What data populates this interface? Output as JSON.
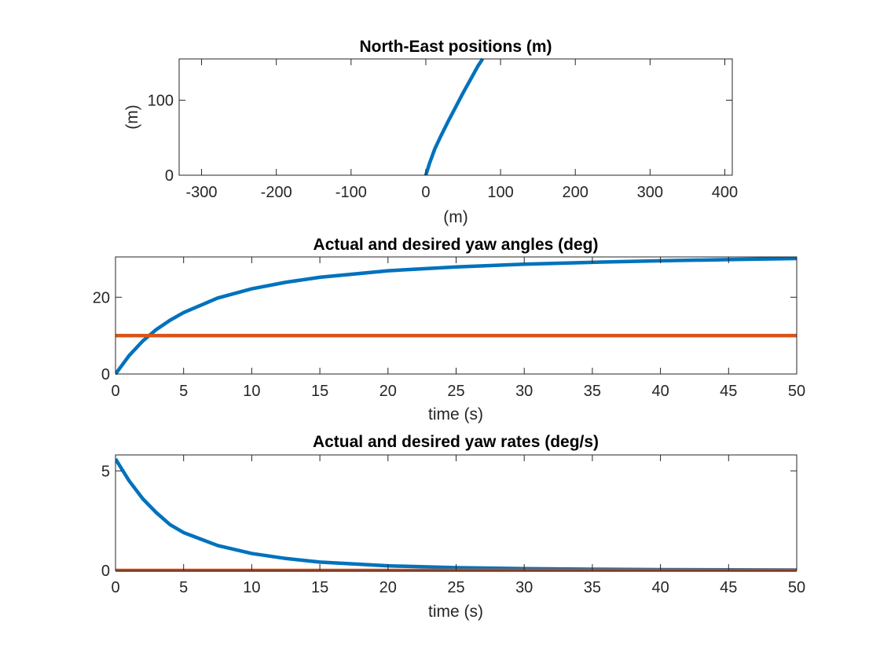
{
  "chart_data": [
    {
      "type": "line",
      "title": "North-East positions (m)",
      "xlabel": "(m)",
      "ylabel": "(m)",
      "xlim": [
        -330,
        410
      ],
      "ylim": [
        0,
        155
      ],
      "xticks": [
        -300,
        -200,
        -100,
        0,
        100,
        200,
        300,
        400
      ],
      "yticks": [
        0,
        100
      ],
      "grid": false,
      "series": [
        {
          "color": "#0072BD",
          "x": [
            0,
            5,
            12,
            20,
            30,
            40,
            50,
            60,
            70,
            76
          ],
          "y": [
            0,
            16,
            35,
            52,
            72,
            91,
            110,
            128,
            146,
            155
          ]
        }
      ]
    },
    {
      "type": "line",
      "title": "Actual and desired yaw angles (deg)",
      "xlabel": "time (s)",
      "ylabel": "",
      "xlim": [
        0,
        50
      ],
      "ylim": [
        0,
        30.5
      ],
      "xticks": [
        0,
        5,
        10,
        15,
        20,
        25,
        30,
        35,
        40,
        45,
        50
      ],
      "yticks": [
        0,
        20
      ],
      "grid": false,
      "series": [
        {
          "color": "#0072BD",
          "x": [
            0,
            1,
            2,
            3,
            4,
            5,
            7.5,
            10,
            12.5,
            15,
            20,
            25,
            30,
            35,
            40,
            45,
            50
          ],
          "y": [
            0,
            4.8,
            8.6,
            11.6,
            14,
            16,
            19.8,
            22.2,
            23.9,
            25.2,
            26.9,
            27.9,
            28.6,
            29.1,
            29.5,
            29.8,
            30.1
          ]
        },
        {
          "color": "#D95319",
          "x": [
            0,
            50
          ],
          "y": [
            10,
            10
          ]
        }
      ]
    },
    {
      "type": "line",
      "title": "Actual and desired yaw rates (deg/s)",
      "xlabel": "time (s)",
      "ylabel": "",
      "xlim": [
        0,
        50
      ],
      "ylim": [
        0,
        5.8
      ],
      "xticks": [
        0,
        5,
        10,
        15,
        20,
        25,
        30,
        35,
        40,
        45,
        50
      ],
      "yticks": [
        0,
        5
      ],
      "grid": false,
      "series": [
        {
          "color": "#0072BD",
          "x": [
            0,
            1,
            2,
            3,
            4,
            5,
            7.5,
            10,
            12.5,
            15,
            20,
            25,
            30,
            35,
            40,
            45,
            50
          ],
          "y": [
            5.6,
            4.5,
            3.6,
            2.9,
            2.3,
            1.9,
            1.25,
            0.85,
            0.6,
            0.42,
            0.23,
            0.14,
            0.09,
            0.06,
            0.04,
            0.03,
            0.02
          ]
        },
        {
          "color": "#D95319",
          "x": [
            0,
            50
          ],
          "y": [
            0,
            0
          ]
        }
      ]
    }
  ]
}
